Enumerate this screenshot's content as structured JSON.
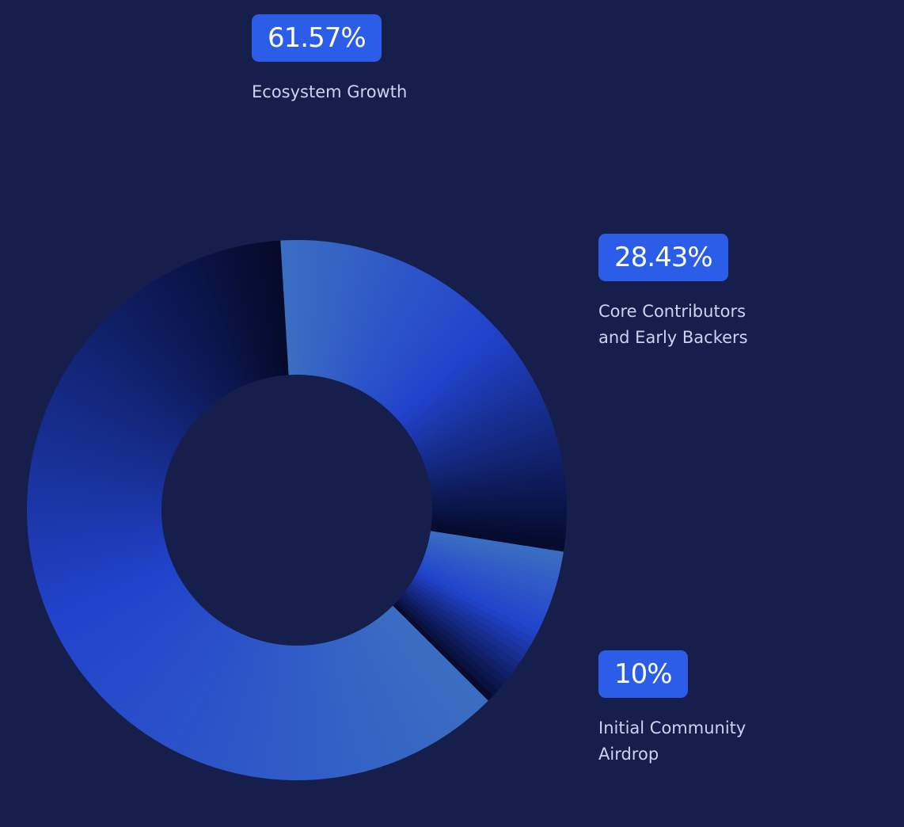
{
  "chart_data": {
    "type": "pie",
    "variant": "donut",
    "slices": [
      {
        "label": "Core Contributors and Early Backers",
        "label_lines": [
          "Core Contributors",
          "and Early Backers"
        ],
        "value": 28.43,
        "display": "28.43%"
      },
      {
        "label": "Initial Community Airdrop",
        "label_lines": [
          "Initial Community",
          "Airdrop"
        ],
        "value": 10,
        "display": "10%"
      },
      {
        "label": "Ecosystem Growth",
        "label_lines": [
          "Ecosystem Growth"
        ],
        "value": 61.57,
        "display": "61.57%"
      }
    ],
    "colors": {
      "background": "#161e4b",
      "badge": "#2b5de8",
      "gradient_light": "#3b6ec2",
      "gradient_mid": "#2143cc",
      "gradient_dark": "#050a2a"
    }
  }
}
